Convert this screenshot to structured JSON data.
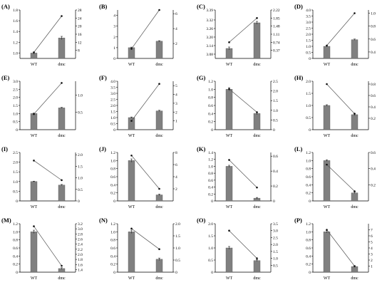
{
  "figure": {
    "panel_count": 16,
    "colors": {
      "bar": "#808080",
      "bar_stroke": "#555555",
      "line": "#555555",
      "marker": "#111111",
      "axis": "#000000"
    }
  },
  "chart_data": [
    {
      "panel": "(A)",
      "type": "bar+line",
      "categories": [
        "WT",
        "dmc"
      ],
      "series": [
        {
          "axis": "left",
          "kind": "bar",
          "values": [
            1.0,
            1.28
          ],
          "errors": [
            0.02,
            0.03
          ]
        },
        {
          "axis": "right",
          "kind": "line",
          "values": [
            7,
            25
          ]
        }
      ],
      "left_axis": {
        "range": [
          0.9,
          1.8
        ],
        "ticks": [
          "1.0",
          "1.2",
          "1.4",
          "1.6",
          "1.8"
        ]
      },
      "right_axis": {
        "range": [
          4,
          28
        ],
        "ticks": [
          "8",
          "12",
          "16",
          "20",
          "24",
          "28"
        ]
      }
    },
    {
      "panel": "(B)",
      "type": "bar+line",
      "categories": [
        "WT",
        "dmc"
      ],
      "series": [
        {
          "axis": "left",
          "kind": "bar",
          "values": [
            1.0,
            1.6
          ],
          "errors": [
            0.05,
            0.05
          ]
        },
        {
          "axis": "right",
          "kind": "line",
          "values": [
            1.3,
            6.5
          ]
        }
      ],
      "left_axis": {
        "range": [
          0,
          4.5
        ],
        "ticks": [
          "0",
          "1",
          "2",
          "3",
          "4"
        ]
      },
      "right_axis": {
        "range": [
          0,
          6.5
        ],
        "ticks": [
          "2",
          "4",
          "6"
        ]
      }
    },
    {
      "panel": "(C)",
      "type": "bar+line",
      "categories": [
        "WT",
        "dmc"
      ],
      "series": [
        {
          "axis": "left",
          "kind": "bar",
          "values": [
            3.12,
            3.3
          ],
          "errors": [
            0.01,
            0.01
          ]
        },
        {
          "axis": "right",
          "kind": "line",
          "values": [
            0.74,
            1.85
          ]
        }
      ],
      "left_axis": {
        "range": [
          3.05,
          3.39
        ],
        "ticks": [
          "3.08",
          "3.14",
          "3.20",
          "3.26",
          "3.32",
          "3.39"
        ]
      },
      "right_axis": {
        "range": [
          0.0,
          2.22
        ],
        "ticks": [
          "0.37",
          "0.74",
          "1.11",
          "1.48",
          "1.85",
          "2.22"
        ]
      }
    },
    {
      "panel": "(D)",
      "type": "bar+line",
      "categories": [
        "WT",
        "dmc"
      ],
      "series": [
        {
          "axis": "left",
          "kind": "bar",
          "values": [
            1.0,
            1.55
          ],
          "errors": [
            0.05,
            0.05
          ]
        },
        {
          "axis": "right",
          "kind": "line",
          "values": [
            0.5,
            1.0
          ]
        }
      ],
      "left_axis": {
        "range": [
          0,
          4.0
        ],
        "ticks": [
          "0",
          "0.5",
          "1.0",
          "1.5",
          "2.0",
          "2.5",
          "3.0",
          "3.5",
          "4.0"
        ]
      },
      "right_axis": {
        "range": [
          0.3,
          1.05
        ],
        "ticks": [
          "0.4",
          "0.6",
          "0.8",
          "1.0"
        ]
      }
    },
    {
      "panel": "(E)",
      "type": "bar+line",
      "categories": [
        "WT",
        "dmc"
      ],
      "series": [
        {
          "axis": "left",
          "kind": "bar",
          "values": [
            1.0,
            1.35
          ],
          "errors": [
            0.03,
            0.03
          ]
        },
        {
          "axis": "right",
          "kind": "line",
          "values": [
            0.45,
            1.35
          ]
        }
      ],
      "left_axis": {
        "range": [
          0,
          3.0
        ],
        "ticks": [
          "0",
          "0.5",
          "1.0",
          "1.5",
          "2.0",
          "2.5",
          "3.0"
        ]
      },
      "right_axis": {
        "range": [
          0,
          1.4
        ],
        "ticks": [
          "0.5",
          "1.0"
        ]
      }
    },
    {
      "panel": "(F)",
      "type": "bar+line",
      "categories": [
        "WT",
        "dmc"
      ],
      "series": [
        {
          "axis": "left",
          "kind": "bar",
          "values": [
            1.0,
            1.55
          ],
          "errors": [
            0.05,
            0.05
          ]
        },
        {
          "axis": "right",
          "kind": "line",
          "values": [
            1.0,
            5.2
          ]
        }
      ],
      "left_axis": {
        "range": [
          0,
          4.0
        ],
        "ticks": [
          "0",
          "0.5",
          "1.0",
          "1.5",
          "2.0",
          "2.5",
          "3.0",
          "3.5",
          "4.0"
        ]
      },
      "right_axis": {
        "range": [
          0,
          5.5
        ],
        "ticks": [
          "1",
          "2",
          "3",
          "4",
          "5"
        ]
      }
    },
    {
      "panel": "(G)",
      "type": "bar+line",
      "categories": [
        "WT",
        "dmc"
      ],
      "series": [
        {
          "axis": "left",
          "kind": "bar",
          "values": [
            1.0,
            0.4
          ],
          "errors": [
            0.04,
            0.03
          ]
        },
        {
          "axis": "right",
          "kind": "line",
          "values": [
            2.1,
            0.9
          ]
        }
      ],
      "left_axis": {
        "range": [
          0,
          1.2
        ],
        "ticks": [
          "0",
          "0.2",
          "0.4",
          "0.6",
          "0.8",
          "1.0",
          "1.2"
        ]
      },
      "right_axis": {
        "range": [
          0,
          2.5
        ],
        "ticks": [
          "0",
          "0.5",
          "1.0",
          "1.5",
          "2.0",
          "2.5"
        ]
      }
    },
    {
      "panel": "(H)",
      "type": "bar+line",
      "categories": [
        "WT",
        "dmc"
      ],
      "series": [
        {
          "axis": "left",
          "kind": "bar",
          "values": [
            1.0,
            0.62
          ],
          "errors": [
            0.03,
            0.04
          ]
        },
        {
          "axis": "right",
          "kind": "line",
          "values": [
            0.8,
            0.28
          ]
        }
      ],
      "left_axis": {
        "range": [
          0,
          2.0
        ],
        "ticks": [
          "0",
          "0.5",
          "1.0",
          "1.5",
          "2.0"
        ]
      },
      "right_axis": {
        "range": [
          0,
          0.85
        ],
        "ticks": [
          "0.2",
          "0.4",
          "0.6",
          "0.8"
        ]
      }
    },
    {
      "panel": "(I)",
      "type": "bar+line",
      "categories": [
        "WT",
        "dmc"
      ],
      "series": [
        {
          "axis": "left",
          "kind": "bar",
          "values": [
            1.0,
            0.82
          ],
          "errors": [
            0.02,
            0.03
          ]
        },
        {
          "axis": "right",
          "kind": "line",
          "values": [
            1.75,
            0.9
          ]
        }
      ],
      "left_axis": {
        "range": [
          0,
          2.5
        ],
        "ticks": [
          "0",
          "0.5",
          "1.0",
          "1.5",
          "2.0",
          "2.5"
        ]
      },
      "right_axis": {
        "range": [
          0,
          2.1
        ],
        "ticks": [
          "0",
          "0.5",
          "1.0",
          "1.5",
          "2.0"
        ]
      }
    },
    {
      "panel": "(J)",
      "type": "bar+line",
      "categories": [
        "WT",
        "dmc"
      ],
      "series": [
        {
          "axis": "left",
          "kind": "bar",
          "values": [
            1.0,
            0.15
          ],
          "errors": [
            0.04,
            0.02
          ]
        },
        {
          "axis": "right",
          "kind": "line",
          "values": [
            7.5,
            2.0
          ]
        }
      ],
      "left_axis": {
        "range": [
          0,
          1.2
        ],
        "ticks": [
          "0",
          "0.2",
          "0.4",
          "0.6",
          "0.8",
          "1.0",
          "1.2"
        ]
      },
      "right_axis": {
        "range": [
          0,
          8
        ],
        "ticks": [
          "2",
          "4",
          "6",
          "8"
        ]
      }
    },
    {
      "panel": "(K)",
      "type": "bar+line",
      "categories": [
        "WT",
        "dmc"
      ],
      "series": [
        {
          "axis": "left",
          "kind": "bar",
          "values": [
            1.0,
            0.08
          ],
          "errors": [
            0.03,
            0.02
          ]
        },
        {
          "axis": "right",
          "kind": "line",
          "values": [
            0.55,
            0.18
          ]
        }
      ],
      "left_axis": {
        "range": [
          0,
          1.4
        ],
        "ticks": [
          "0",
          "0.2",
          "0.4",
          "0.6",
          "0.8",
          "1.0",
          "1.2",
          "1.4"
        ]
      },
      "right_axis": {
        "range": [
          0,
          0.65
        ],
        "ticks": [
          "0",
          "0.2",
          "0.4",
          "0.6"
        ]
      }
    },
    {
      "panel": "(L)",
      "type": "bar+line",
      "categories": [
        "WT",
        "dmc"
      ],
      "series": [
        {
          "axis": "left",
          "kind": "bar",
          "values": [
            1.0,
            0.2
          ],
          "errors": [
            0.02,
            0.02
          ]
        },
        {
          "axis": "right",
          "kind": "line",
          "values": [
            0.45,
            0.12
          ]
        }
      ],
      "left_axis": {
        "range": [
          0,
          1.2
        ],
        "ticks": [
          "0",
          "0.2",
          "0.4",
          "0.6",
          "0.8",
          "1.0",
          "1.2"
        ]
      },
      "right_axis": {
        "range": [
          0,
          0.6
        ],
        "ticks": [
          "0.2",
          "0.4",
          "0.6"
        ]
      }
    },
    {
      "panel": "(M)",
      "type": "bar+line",
      "categories": [
        "WT",
        "dmc"
      ],
      "series": [
        {
          "axis": "left",
          "kind": "bar",
          "values": [
            1.0,
            0.09
          ],
          "errors": [
            0.04,
            0.02
          ]
        },
        {
          "axis": "right",
          "kind": "line",
          "values": [
            3.1,
            1.55
          ]
        }
      ],
      "left_axis": {
        "range": [
          0,
          1.2
        ],
        "ticks": [
          "0",
          "0.2",
          "0.4",
          "0.6",
          "0.8",
          "1.0",
          "1.2"
        ]
      },
      "right_axis": {
        "range": [
          1.3,
          3.2
        ],
        "ticks": [
          "1.4",
          "1.6",
          "1.8",
          "2.0",
          "2.2",
          "2.4",
          "2.6",
          "2.8",
          "3.0",
          "3.2"
        ]
      }
    },
    {
      "panel": "(N)",
      "type": "bar+line",
      "categories": [
        "WT",
        "dmc"
      ],
      "series": [
        {
          "axis": "left",
          "kind": "bar",
          "values": [
            1.0,
            0.32
          ],
          "errors": [
            0.04,
            0.03
          ]
        },
        {
          "axis": "right",
          "kind": "line",
          "values": [
            1.8,
            0.95
          ]
        }
      ],
      "left_axis": {
        "range": [
          0,
          1.2
        ],
        "ticks": [
          "0",
          "0.2",
          "0.4",
          "0.6",
          "0.8",
          "1.0",
          "1.2"
        ]
      },
      "right_axis": {
        "range": [
          0,
          2.0
        ],
        "ticks": [
          "0",
          "0.5",
          "1.0",
          "1.5",
          "2.0"
        ]
      }
    },
    {
      "panel": "(O)",
      "type": "bar+line",
      "categories": [
        "WT",
        "dmc"
      ],
      "series": [
        {
          "axis": "left",
          "kind": "bar",
          "values": [
            1.0,
            0.48
          ],
          "errors": [
            0.06,
            0.04
          ]
        },
        {
          "axis": "right",
          "kind": "line",
          "values": [
            3.0,
            1.0
          ]
        }
      ],
      "left_axis": {
        "range": [
          0,
          2.0
        ],
        "ticks": [
          "0",
          "0.5",
          "1.0",
          "1.5",
          "2.0"
        ]
      },
      "right_axis": {
        "range": [
          0,
          3.5
        ],
        "ticks": [
          "0.5",
          "1.0",
          "1.5",
          "2.0",
          "2.5",
          "3.0",
          "3.5"
        ]
      }
    },
    {
      "panel": "(P)",
      "type": "bar+line",
      "categories": [
        "WT",
        "dmc"
      ],
      "series": [
        {
          "axis": "left",
          "kind": "bar",
          "values": [
            1.0,
            0.14
          ],
          "errors": [
            0.03,
            0.02
          ]
        },
        {
          "axis": "right",
          "kind": "line",
          "values": [
            7.0,
            1.0
          ]
        }
      ],
      "left_axis": {
        "range": [
          0,
          1.2
        ],
        "ticks": [
          "0",
          "0.2",
          "0.4",
          "0.6",
          "0.8",
          "1.0",
          "1.2"
        ]
      },
      "right_axis": {
        "range": [
          0,
          8
        ],
        "ticks": [
          "1",
          "2",
          "3",
          "4",
          "5",
          "6",
          "7"
        ]
      }
    }
  ]
}
